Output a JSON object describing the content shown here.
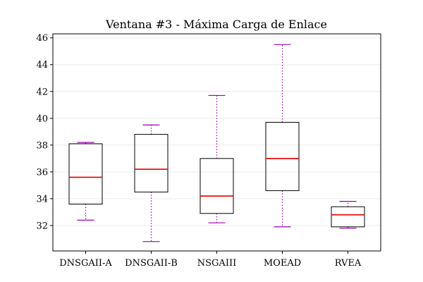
{
  "chart_data": {
    "type": "box",
    "title": "Ventana #3 - Máxima Carga de Enlace",
    "xlabel": "",
    "ylabel": "",
    "ylim": [
      30.1,
      46.3
    ],
    "yticks": [
      32,
      34,
      36,
      38,
      40,
      42,
      44,
      46
    ],
    "grid": "horizontal",
    "categories": [
      "DNSGAII-A",
      "DNSGAII-B",
      "NSGAIII",
      "MOEAD",
      "RVEA"
    ],
    "boxes": [
      {
        "category": "DNSGAII-A",
        "whisker_low": 32.4,
        "q1": 33.6,
        "median": 35.6,
        "q3": 38.1,
        "whisker_high": 38.2
      },
      {
        "category": "DNSGAII-B",
        "whisker_low": 30.8,
        "q1": 34.5,
        "median": 36.2,
        "q3": 38.8,
        "whisker_high": 39.5
      },
      {
        "category": "NSGAIII",
        "whisker_low": 32.2,
        "q1": 32.9,
        "median": 34.2,
        "q3": 37.0,
        "whisker_high": 41.7
      },
      {
        "category": "MOEAD",
        "whisker_low": 31.9,
        "q1": 34.6,
        "median": 37.0,
        "q3": 39.7,
        "whisker_high": 45.5
      },
      {
        "category": "RVEA",
        "whisker_low": 31.8,
        "q1": 31.9,
        "median": 32.8,
        "q3": 33.4,
        "whisker_high": 33.8
      }
    ],
    "colors": {
      "box": "#000000",
      "median": "#dd0000",
      "whisker": "#9a00aa",
      "cap": "#9a00aa",
      "grid": "#ececec",
      "axes": "#000000"
    }
  }
}
